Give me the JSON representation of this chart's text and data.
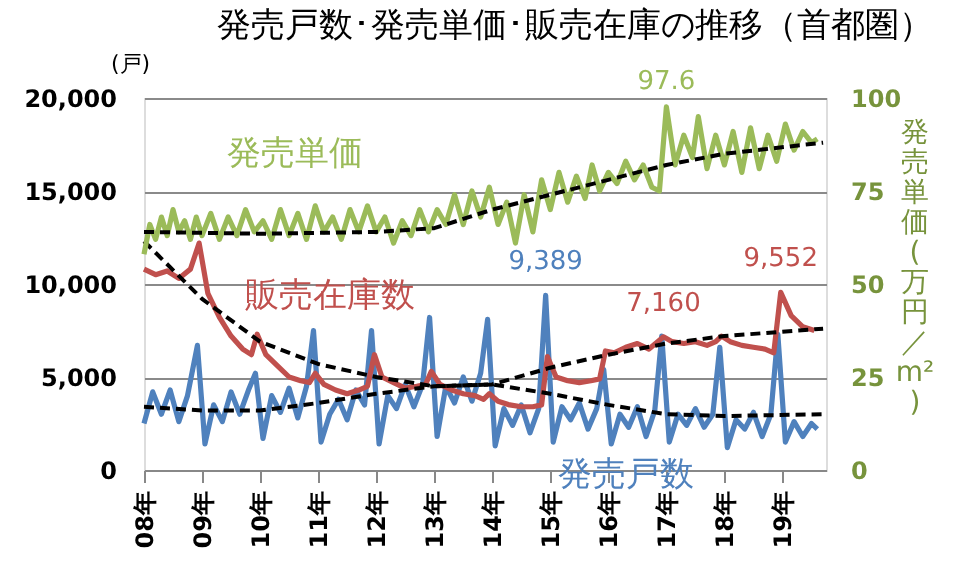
{
  "chart_data": {
    "type": "line",
    "title": "発売戸数･発売単価･販売在庫の推移（首都圏）",
    "ylabel": "(戸)",
    "y2label": "発売単価(万円／m²)",
    "xlim": [
      8,
      19.75
    ],
    "xticks": [
      {
        "value": 8,
        "label": "08年"
      },
      {
        "value": 9,
        "label": "09年"
      },
      {
        "value": 10,
        "label": "10年"
      },
      {
        "value": 11,
        "label": "11年"
      },
      {
        "value": 12,
        "label": "12年"
      },
      {
        "value": 13,
        "label": "13年"
      },
      {
        "value": 14,
        "label": "14年"
      },
      {
        "value": 15,
        "label": "15年"
      },
      {
        "value": 16,
        "label": "16年"
      },
      {
        "value": 17,
        "label": "17年"
      },
      {
        "value": 18,
        "label": "18年"
      },
      {
        "value": 19,
        "label": "19年"
      }
    ],
    "ylim": [
      0,
      20000
    ],
    "yticks": [
      0,
      {
        "value": 5000,
        "label": "5,000"
      },
      {
        "value": 10000,
        "label": "10,000"
      },
      {
        "value": 15000,
        "label": "15,000"
      },
      {
        "value": 20000,
        "label": "20,000"
      }
    ],
    "y2lim": [
      0,
      100
    ],
    "y2ticks": [
      0,
      25,
      50,
      75,
      100
    ],
    "grid": "y",
    "legend": false,
    "series": [
      {
        "name": "発売戸数",
        "color": "#4f81bd",
        "x": [
          8.0,
          8.15,
          8.3,
          8.45,
          8.6,
          8.75,
          8.92,
          9.05,
          9.2,
          9.35,
          9.5,
          9.65,
          9.8,
          9.92,
          10.05,
          10.2,
          10.35,
          10.5,
          10.65,
          10.8,
          10.92,
          11.05,
          11.2,
          11.35,
          11.5,
          11.65,
          11.8,
          11.92,
          12.05,
          12.2,
          12.35,
          12.5,
          12.65,
          12.8,
          12.92,
          13.05,
          13.2,
          13.35,
          13.5,
          13.65,
          13.8,
          13.92,
          14.05,
          14.2,
          14.35,
          14.5,
          14.65,
          14.8,
          14.92,
          15.05,
          15.2,
          15.35,
          15.5,
          15.65,
          15.8,
          15.92,
          16.05,
          16.2,
          16.35,
          16.5,
          16.65,
          16.8,
          16.92,
          17.05,
          17.2,
          17.35,
          17.5,
          17.65,
          17.8,
          17.92,
          18.05,
          18.2,
          18.35,
          18.5,
          18.65,
          18.8,
          18.92,
          19.05,
          19.2,
          19.35,
          19.5,
          19.6
        ],
        "values": [
          2500,
          4200,
          3000,
          4300,
          2600,
          4000,
          6700,
          1400,
          3500,
          2600,
          4200,
          3000,
          4300,
          5200,
          1700,
          4000,
          3100,
          4400,
          2800,
          4500,
          7500,
          1500,
          3000,
          3800,
          2700,
          4300,
          3500,
          7500,
          1400,
          4000,
          3300,
          4600,
          3400,
          4600,
          8200,
          1800,
          4500,
          3600,
          5000,
          3700,
          5200,
          8100,
          1300,
          3300,
          2400,
          3500,
          2000,
          3300,
          9389,
          1500,
          3400,
          2700,
          3600,
          2200,
          3300,
          5400,
          1400,
          3000,
          2300,
          3400,
          1800,
          3200,
          7200,
          1500,
          3000,
          2400,
          3300,
          2300,
          3000,
          6600,
          1200,
          2700,
          2200,
          3100,
          1800,
          3000,
          7300,
          1500,
          2600,
          1800,
          2500,
          2200
        ]
      },
      {
        "name": "販売在庫数",
        "color": "#c0504d",
        "x": [
          8.0,
          8.2,
          8.4,
          8.6,
          8.8,
          8.95,
          9.1,
          9.3,
          9.5,
          9.7,
          9.85,
          9.95,
          10.1,
          10.3,
          10.5,
          10.7,
          10.85,
          10.95,
          11.1,
          11.3,
          11.5,
          11.7,
          11.85,
          11.97,
          12.1,
          12.3,
          12.5,
          12.7,
          12.85,
          12.95,
          13.1,
          13.3,
          13.5,
          13.7,
          13.85,
          13.95,
          14.1,
          14.3,
          14.5,
          14.7,
          14.85,
          14.95,
          15.1,
          15.3,
          15.5,
          15.7,
          15.85,
          15.95,
          16.1,
          16.3,
          16.5,
          16.7,
          16.85,
          16.95,
          17.1,
          17.3,
          17.5,
          17.7,
          17.85,
          17.95,
          18.1,
          18.3,
          18.5,
          18.7,
          18.85,
          18.97,
          19.15,
          19.35,
          19.55
        ],
        "values": [
          10800,
          10500,
          10700,
          10300,
          10800,
          12200,
          9500,
          8200,
          7200,
          6500,
          6200,
          7300,
          6200,
          5600,
          5000,
          4800,
          4700,
          5200,
          4600,
          4300,
          4100,
          4300,
          4500,
          6200,
          5000,
          4700,
          4400,
          4500,
          4600,
          5300,
          4600,
          4300,
          4100,
          4000,
          3800,
          4100,
          3700,
          3500,
          3400,
          3400,
          3500,
          6100,
          5000,
          4800,
          4700,
          4800,
          4900,
          6400,
          6300,
          6600,
          6800,
          6500,
          6900,
          7160,
          6900,
          6800,
          6900,
          6700,
          6900,
          7200,
          6900,
          6700,
          6600,
          6500,
          6300,
          9552,
          8300,
          7700,
          7500
        ]
      },
      {
        "name": "発売単価",
        "color": "#9bbb59",
        "axis": "y2",
        "x": [
          8.0,
          8.1,
          8.2,
          8.3,
          8.4,
          8.5,
          8.6,
          8.7,
          8.8,
          8.9,
          9.0,
          9.15,
          9.3,
          9.45,
          9.6,
          9.75,
          9.9,
          10.05,
          10.2,
          10.35,
          10.5,
          10.65,
          10.8,
          10.95,
          11.1,
          11.25,
          11.4,
          11.55,
          11.7,
          11.85,
          12.0,
          12.15,
          12.3,
          12.45,
          12.6,
          12.75,
          12.9,
          13.05,
          13.2,
          13.35,
          13.5,
          13.65,
          13.8,
          13.95,
          14.1,
          14.25,
          14.4,
          14.55,
          14.7,
          14.85,
          15.0,
          15.15,
          15.3,
          15.45,
          15.6,
          15.72,
          15.85,
          16.0,
          16.15,
          16.3,
          16.45,
          16.6,
          16.75,
          16.88,
          17.0,
          17.15,
          17.3,
          17.45,
          17.55,
          17.7,
          17.85,
          18.0,
          18.15,
          18.3,
          18.45,
          18.6,
          18.75,
          18.9,
          19.05,
          19.2,
          19.35,
          19.5,
          19.6
        ],
        "values": [
          58,
          66,
          62,
          68,
          63,
          70,
          64,
          67,
          62,
          68,
          63,
          69,
          62,
          68,
          63,
          70,
          64,
          67,
          62,
          70,
          63,
          69,
          62,
          71,
          64,
          68,
          62,
          70,
          64,
          71,
          64,
          68,
          61,
          67,
          63,
          70,
          64,
          70,
          66,
          74,
          66,
          75,
          68,
          76,
          66,
          72,
          61,
          74,
          64,
          78,
          70,
          80,
          72,
          79,
          73,
          82,
          75,
          80,
          77,
          83,
          78,
          82,
          76,
          75,
          97.6,
          82,
          90,
          84,
          95,
          81,
          90,
          82,
          91,
          80,
          92,
          81,
          90,
          83,
          93,
          86,
          91,
          88,
          89
        ],
        "value_labels": [
          null,
          null,
          null,
          null,
          null,
          null,
          null,
          null,
          null,
          null,
          null,
          null,
          null,
          null,
          null,
          null,
          null,
          null,
          null,
          null,
          null,
          null,
          null,
          null,
          null,
          null,
          null,
          null,
          null,
          null,
          null,
          null,
          null,
          null,
          null,
          null,
          null,
          null,
          null,
          null,
          null,
          null,
          null,
          null,
          null,
          null,
          null,
          null,
          null,
          null,
          null,
          null,
          null,
          null,
          null,
          null,
          null,
          null,
          null,
          null,
          null,
          null,
          null,
          null,
          "97.6",
          null,
          null,
          null,
          null,
          null,
          null,
          null,
          null,
          null,
          null,
          null,
          null,
          null,
          null,
          null,
          null,
          null,
          null
        ]
      },
      {
        "color": "#000000",
        "line_style": "dashed",
        "x": [
          8,
          9,
          10,
          11,
          12,
          13,
          14,
          15,
          16,
          17,
          18,
          19.7
        ],
        "values": [
          3400,
          3200,
          3200,
          3600,
          4100,
          4500,
          4600,
          4100,
          3500,
          3000,
          2900,
          3000
        ]
      },
      {
        "color": "#000000",
        "line_style": "dashed",
        "x": [
          8,
          9,
          10,
          11,
          12,
          13,
          14,
          15,
          16,
          17,
          18,
          19.7
        ],
        "values": [
          12300,
          9200,
          6900,
          5700,
          5000,
          4500,
          4600,
          5500,
          6200,
          6800,
          7200,
          7600
        ]
      },
      {
        "color": "#000000",
        "line_style": "dashed",
        "axis": "y2",
        "x": [
          8,
          10,
          12,
          13,
          14,
          15,
          16,
          17,
          18,
          19.7
        ],
        "values": [
          64,
          63.5,
          64,
          65,
          70,
          74,
          78,
          82,
          85,
          88
        ]
      }
    ],
    "annotations": [
      {
        "text": "9,389",
        "x": 14.92,
        "y": 9389
      },
      {
        "text": "7,160",
        "x": 16.95,
        "y": 7160
      },
      {
        "text": "9,552",
        "x": 18.97,
        "y": 9552
      }
    ]
  }
}
